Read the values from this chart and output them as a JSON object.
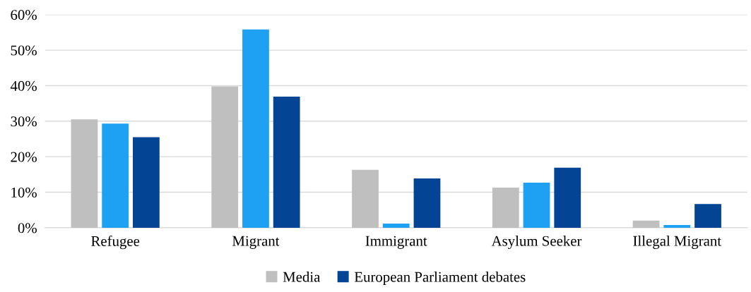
{
  "chart_data": {
    "type": "bar",
    "categories": [
      "Refugee",
      "Migrant",
      "Immigrant",
      "Asylum Seeker",
      "Illegal Migrant"
    ],
    "series": [
      {
        "name": "Media",
        "color": "#bfbfbf",
        "values": [
          30.5,
          39.8,
          16.3,
          11.3,
          2.0
        ]
      },
      {
        "color": "#1ea1f2",
        "values": [
          29.3,
          55.8,
          1.2,
          12.7,
          0.8
        ]
      },
      {
        "name": "European Parliament debates",
        "color": "#044494",
        "values": [
          25.5,
          36.9,
          13.9,
          16.9,
          6.7
        ]
      }
    ],
    "ylim": [
      0,
      60
    ],
    "yticks": [
      {
        "value": 0,
        "label": "0%"
      },
      {
        "value": 10,
        "label": "10%"
      },
      {
        "value": 20,
        "label": "20%"
      },
      {
        "value": 30,
        "label": "30%"
      },
      {
        "value": 40,
        "label": "40%"
      },
      {
        "value": 50,
        "label": "50%"
      },
      {
        "value": 60,
        "label": "60%"
      }
    ],
    "grid": "y",
    "legend": "bottom"
  }
}
